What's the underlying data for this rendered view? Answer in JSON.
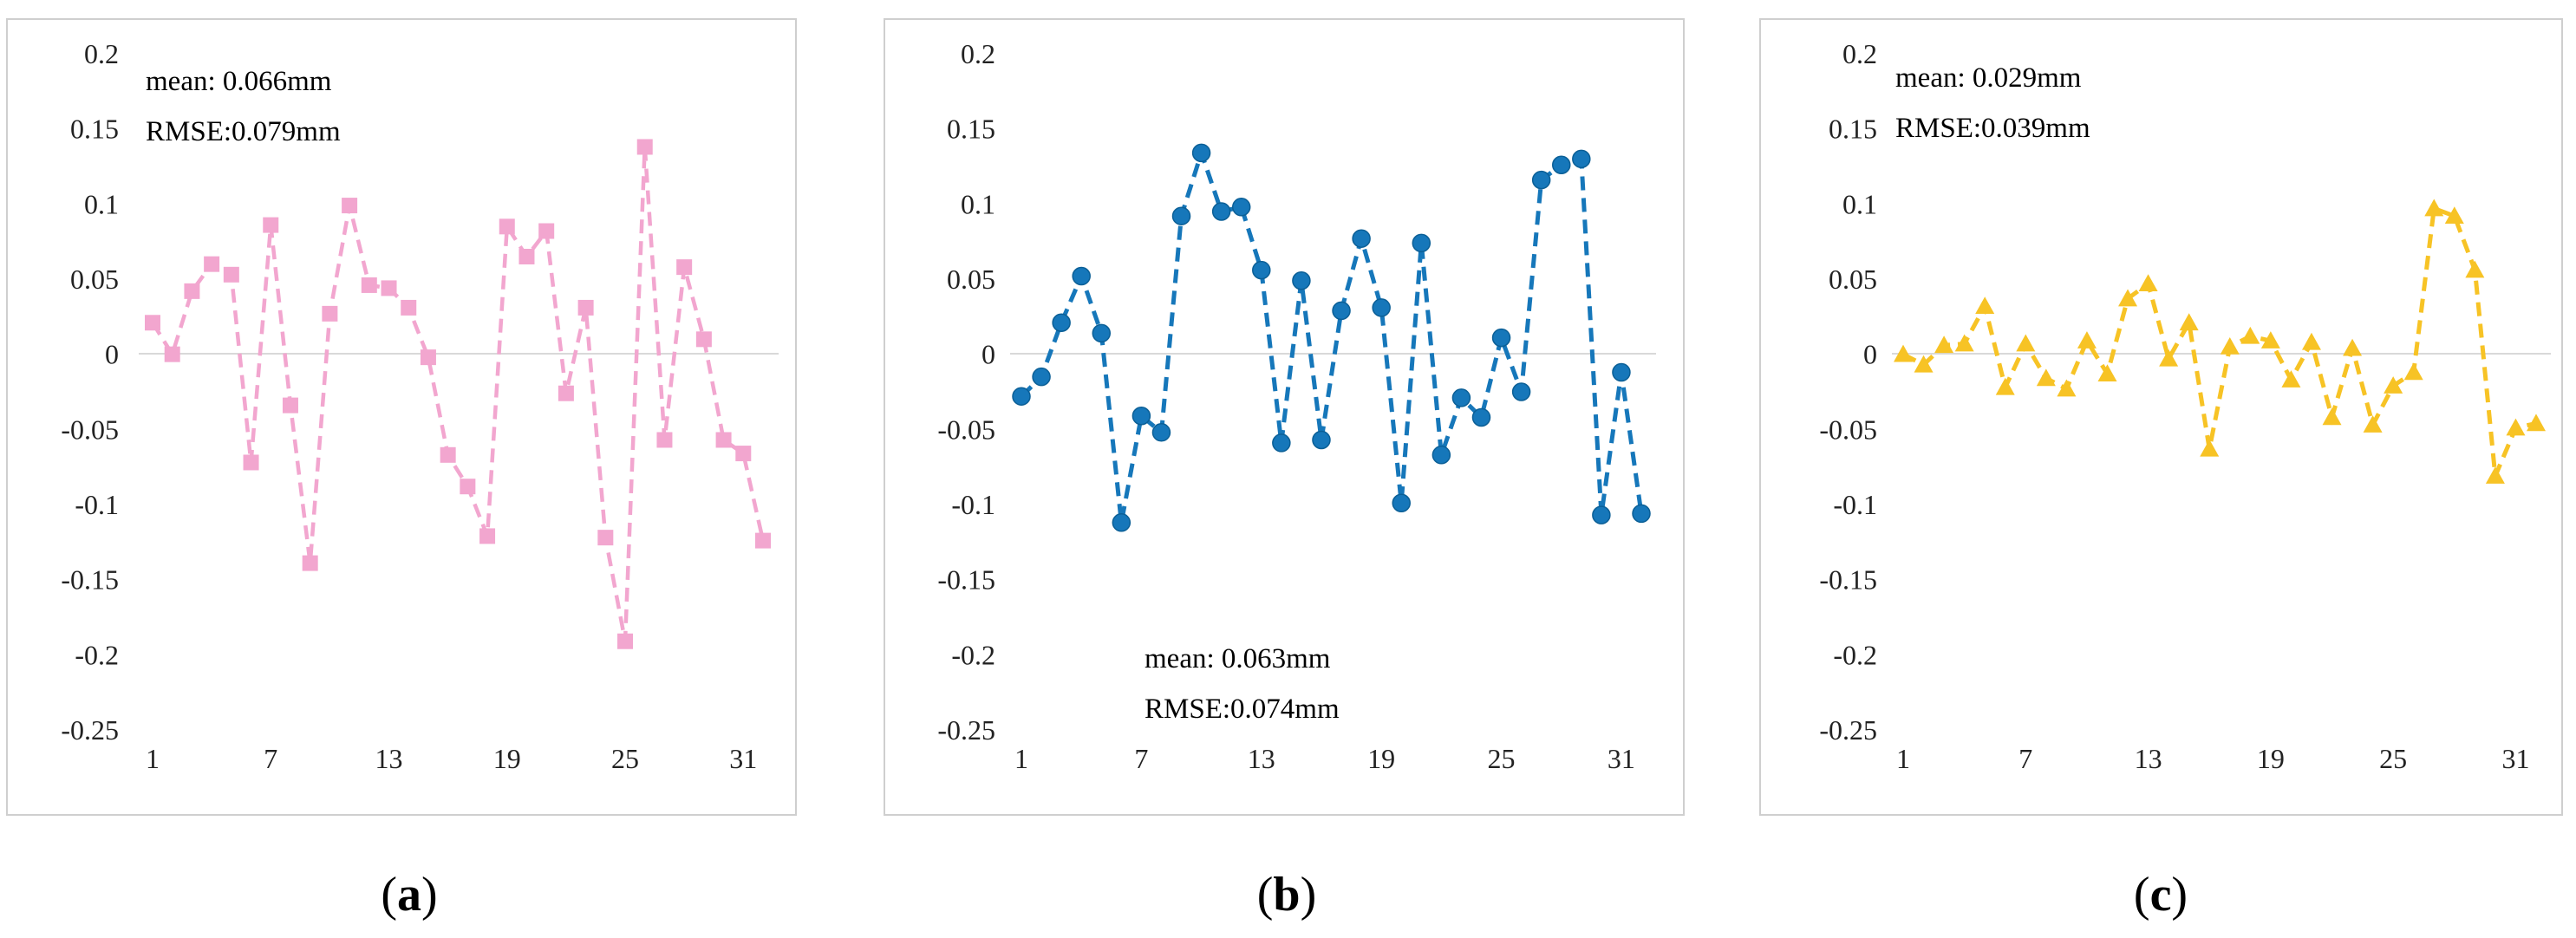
{
  "panels": [
    {
      "caption": "a",
      "annotation": [
        "mean:  0.066mm",
        "RMSE:0.079mm"
      ]
    },
    {
      "caption": "b",
      "annotation": [
        "mean:  0.063mm",
        "RMSE:0.074mm"
      ]
    },
    {
      "caption": "c",
      "annotation": [
        "mean:  0.029mm",
        "RMSE:0.039mm"
      ]
    }
  ],
  "chart_data": [
    {
      "type": "line",
      "color": "#f2a6cf",
      "marker": "square",
      "line_style": "dashed",
      "x": [
        1,
        2,
        3,
        4,
        5,
        6,
        7,
        8,
        9,
        10,
        11,
        12,
        13,
        14,
        15,
        16,
        17,
        18,
        19,
        20,
        21,
        22,
        23,
        24,
        25,
        26,
        27,
        28,
        29,
        30,
        31,
        32
      ],
      "values": [
        0.021,
        0.0,
        0.042,
        0.06,
        0.053,
        -0.072,
        0.086,
        -0.034,
        -0.139,
        0.027,
        0.099,
        0.046,
        0.044,
        0.031,
        -0.002,
        -0.067,
        -0.088,
        -0.121,
        0.085,
        0.065,
        0.082,
        -0.026,
        0.031,
        -0.122,
        -0.191,
        0.138,
        -0.057,
        0.058,
        0.01,
        -0.057,
        -0.066,
        -0.124
      ],
      "x_ticks": [
        "1",
        "7",
        "13",
        "19",
        "25",
        "31"
      ],
      "y_ticks": [
        "0.2",
        "0.15",
        "0.1",
        "0.05",
        "0",
        "-0.05",
        "-0.1",
        "-0.15",
        "-0.2",
        "-0.25"
      ],
      "ylim": [
        -0.25,
        0.2
      ],
      "annotation_position": "top-left",
      "grid": "none"
    },
    {
      "type": "line",
      "color": "#1677ba",
      "marker": "circle",
      "line_style": "dashed",
      "x": [
        1,
        2,
        3,
        4,
        5,
        6,
        7,
        8,
        9,
        10,
        11,
        12,
        13,
        14,
        15,
        16,
        17,
        18,
        19,
        20,
        21,
        22,
        23,
        24,
        25,
        26,
        27,
        28,
        29,
        30,
        31,
        32
      ],
      "values": [
        -0.028,
        -0.015,
        0.021,
        0.052,
        0.014,
        -0.112,
        -0.041,
        -0.052,
        0.092,
        0.134,
        0.095,
        0.098,
        0.056,
        -0.059,
        0.049,
        -0.057,
        0.029,
        0.077,
        0.031,
        -0.099,
        0.074,
        -0.067,
        -0.029,
        -0.042,
        0.011,
        -0.025,
        0.116,
        0.126,
        0.13,
        -0.107,
        -0.012,
        -0.106
      ],
      "x_ticks": [
        "1",
        "7",
        "13",
        "19",
        "25",
        "31"
      ],
      "y_ticks": [
        "0.2",
        "0.15",
        "0.1",
        "0.05",
        "0",
        "-0.05",
        "-0.1",
        "-0.15",
        "-0.2",
        "-0.25"
      ],
      "ylim": [
        -0.25,
        0.2
      ],
      "annotation_position": "bottom-center",
      "grid": "none"
    },
    {
      "type": "line",
      "color": "#f7c325",
      "marker": "triangle",
      "line_style": "dashed",
      "x": [
        1,
        2,
        3,
        4,
        5,
        6,
        7,
        8,
        9,
        10,
        11,
        12,
        13,
        14,
        15,
        16,
        17,
        18,
        19,
        20,
        21,
        22,
        23,
        24,
        25,
        26,
        27,
        28,
        29,
        30,
        31,
        32
      ],
      "values": [
        0.0,
        -0.007,
        0.006,
        0.007,
        0.032,
        -0.022,
        0.007,
        -0.016,
        -0.023,
        0.009,
        -0.013,
        0.037,
        0.047,
        -0.003,
        0.021,
        -0.063,
        0.005,
        0.012,
        0.009,
        -0.017,
        0.008,
        -0.042,
        0.004,
        -0.047,
        -0.021,
        -0.012,
        0.097,
        0.092,
        0.056,
        -0.081,
        -0.049,
        -0.046
      ],
      "x_ticks": [
        "1",
        "7",
        "13",
        "19",
        "25",
        "31"
      ],
      "y_ticks": [
        "0.2",
        "0.15",
        "0.1",
        "0.05",
        "0",
        "-0.05",
        "-0.1",
        "-0.15",
        "-0.2",
        "-0.25"
      ],
      "ylim": [
        -0.25,
        0.2
      ],
      "annotation_position": "top-left",
      "grid": "none"
    }
  ]
}
